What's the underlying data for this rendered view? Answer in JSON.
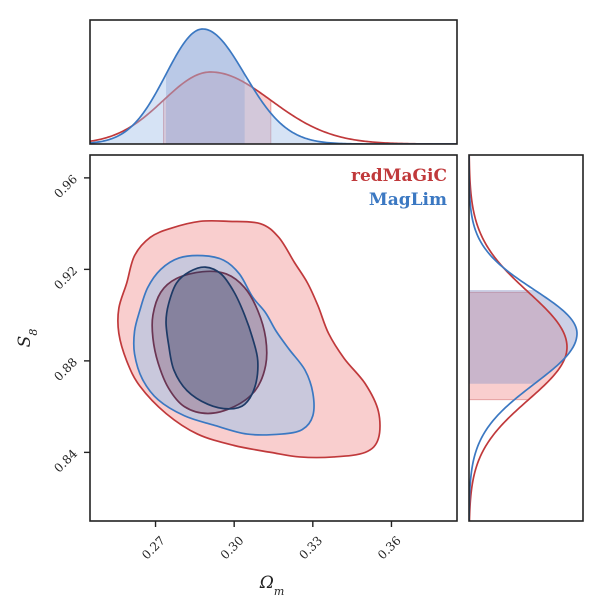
{
  "chart_data": {
    "type": "contour",
    "xlabel": "Ω",
    "xlabel_sub": "m",
    "ylabel": "S",
    "ylabel_sub": "8",
    "xlim": [
      0.245,
      0.385
    ],
    "ylim": [
      0.81,
      0.97
    ],
    "x_ticks": [
      0.27,
      0.3,
      0.33,
      0.36
    ],
    "x_tick_labels": [
      "0.27",
      "0.30",
      "0.33",
      "0.36"
    ],
    "y_ticks": [
      0.84,
      0.88,
      0.92,
      0.96
    ],
    "y_tick_labels": [
      "0.84",
      "0.88",
      "0.92",
      "0.96"
    ],
    "legend_position": "top-right",
    "series": [
      {
        "name": "redMaGiC",
        "color": "#c0393b",
        "fill": "#f4a6a6",
        "omega_m_peak": 0.291,
        "omega_m_68": [
          0.273,
          0.314
        ],
        "s8_peak": 0.886,
        "s8_68": [
          0.863,
          0.91
        ],
        "contour_95": [
          [
            0.259,
            0.914
          ],
          [
            0.262,
            0.926
          ],
          [
            0.268,
            0.934
          ],
          [
            0.276,
            0.938
          ],
          [
            0.287,
            0.941
          ],
          [
            0.298,
            0.941
          ],
          [
            0.31,
            0.94
          ],
          [
            0.317,
            0.934
          ],
          [
            0.323,
            0.923
          ],
          [
            0.328,
            0.914
          ],
          [
            0.332,
            0.904
          ],
          [
            0.336,
            0.892
          ],
          [
            0.342,
            0.881
          ],
          [
            0.35,
            0.87
          ],
          [
            0.355,
            0.858
          ],
          [
            0.355,
            0.846
          ],
          [
            0.35,
            0.84
          ],
          [
            0.338,
            0.838
          ],
          [
            0.325,
            0.838
          ],
          [
            0.314,
            0.84
          ],
          [
            0.3,
            0.843
          ],
          [
            0.286,
            0.848
          ],
          [
            0.274,
            0.857
          ],
          [
            0.264,
            0.869
          ],
          [
            0.259,
            0.88
          ],
          [
            0.256,
            0.892
          ],
          [
            0.256,
            0.903
          ]
        ],
        "contour_68": [
          [
            0.269,
            0.9
          ],
          [
            0.272,
            0.91
          ],
          [
            0.278,
            0.916
          ],
          [
            0.288,
            0.919
          ],
          [
            0.297,
            0.918
          ],
          [
            0.304,
            0.912
          ],
          [
            0.309,
            0.902
          ],
          [
            0.312,
            0.89
          ],
          [
            0.312,
            0.878
          ],
          [
            0.308,
            0.867
          ],
          [
            0.3,
            0.86
          ],
          [
            0.29,
            0.857
          ],
          [
            0.281,
            0.86
          ],
          [
            0.275,
            0.868
          ],
          [
            0.271,
            0.879
          ],
          [
            0.269,
            0.89
          ]
        ]
      },
      {
        "name": "MagLim",
        "color": "#3b78c2",
        "fill": "#a3c2e8",
        "omega_m_peak": 0.288,
        "omega_m_68": [
          0.274,
          0.304
        ],
        "s8_peak": 0.892,
        "s8_68": [
          0.87,
          0.911
        ],
        "contour_95": [
          [
            0.264,
            0.902
          ],
          [
            0.267,
            0.912
          ],
          [
            0.272,
            0.92
          ],
          [
            0.279,
            0.925
          ],
          [
            0.288,
            0.926
          ],
          [
            0.296,
            0.924
          ],
          [
            0.302,
            0.918
          ],
          [
            0.307,
            0.908
          ],
          [
            0.312,
            0.901
          ],
          [
            0.316,
            0.893
          ],
          [
            0.321,
            0.885
          ],
          [
            0.327,
            0.876
          ],
          [
            0.33,
            0.866
          ],
          [
            0.33,
            0.856
          ],
          [
            0.326,
            0.85
          ],
          [
            0.318,
            0.848
          ],
          [
            0.305,
            0.848
          ],
          [
            0.292,
            0.852
          ],
          [
            0.281,
            0.856
          ],
          [
            0.271,
            0.863
          ],
          [
            0.265,
            0.872
          ],
          [
            0.262,
            0.883
          ],
          [
            0.262,
            0.893
          ]
        ],
        "contour_68": [
          [
            0.275,
            0.905
          ],
          [
            0.278,
            0.914
          ],
          [
            0.283,
            0.919
          ],
          [
            0.289,
            0.921
          ],
          [
            0.295,
            0.918
          ],
          [
            0.3,
            0.91
          ],
          [
            0.304,
            0.9
          ],
          [
            0.307,
            0.89
          ],
          [
            0.309,
            0.88
          ],
          [
            0.308,
            0.869
          ],
          [
            0.304,
            0.861
          ],
          [
            0.298,
            0.859
          ],
          [
            0.29,
            0.861
          ],
          [
            0.282,
            0.867
          ],
          [
            0.277,
            0.876
          ],
          [
            0.275,
            0.887
          ],
          [
            0.274,
            0.897
          ]
        ]
      }
    ]
  }
}
